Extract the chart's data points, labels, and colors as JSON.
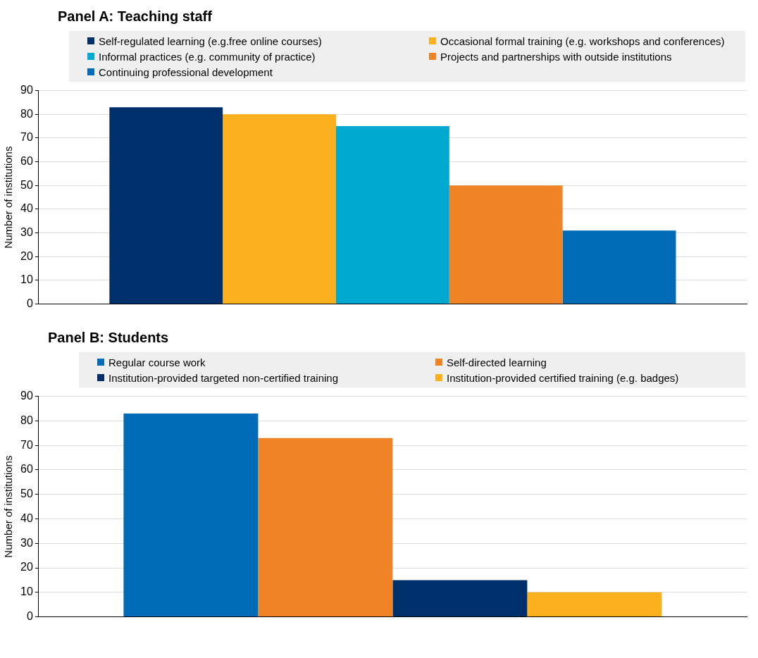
{
  "chart_data": [
    {
      "type": "bar",
      "title": "Panel A: Teaching staff",
      "ylabel": "Number of institutions",
      "categories": [
        null
      ],
      "legend": "top",
      "grid": "y",
      "ylim": [
        0,
        90
      ],
      "yticks": [
        0,
        10,
        20,
        30,
        40,
        50,
        60,
        70,
        80,
        90
      ],
      "series": [
        {
          "name": "Self-regulated learning (e.g.free online courses)",
          "color": "#00306b",
          "values": [
            83
          ]
        },
        {
          "name": "Occasional formal training (e.g. workshops and conferences)",
          "color": "#fbb01d",
          "values": [
            80
          ]
        },
        {
          "name": "Informal practices (e.g. community of practice)",
          "color": "#00a9d0",
          "values": [
            75
          ]
        },
        {
          "name": "Projects and partnerships with outside institutions",
          "color": "#f08326",
          "values": [
            50
          ]
        },
        {
          "name": "Continuing professional development",
          "color": "#006bb6",
          "values": [
            31
          ]
        }
      ]
    },
    {
      "type": "bar",
      "title": "Panel B: Students",
      "ylabel": "Number of institutions",
      "categories": [
        null
      ],
      "legend": "top",
      "grid": "y",
      "ylim": [
        0,
        90
      ],
      "yticks": [
        0,
        10,
        20,
        30,
        40,
        50,
        60,
        70,
        80,
        90
      ],
      "series": [
        {
          "name": "Regular course work",
          "color": "#006bb6",
          "values": [
            83
          ]
        },
        {
          "name": "Self-directed learning",
          "color": "#f08326",
          "values": [
            73
          ]
        },
        {
          "name": "Institution-provided targeted non-certified training",
          "color": "#00306b",
          "values": [
            15
          ]
        },
        {
          "name": "Institution-provided certified training (e.g. badges)",
          "color": "#fbb01d",
          "values": [
            10
          ]
        }
      ]
    }
  ]
}
